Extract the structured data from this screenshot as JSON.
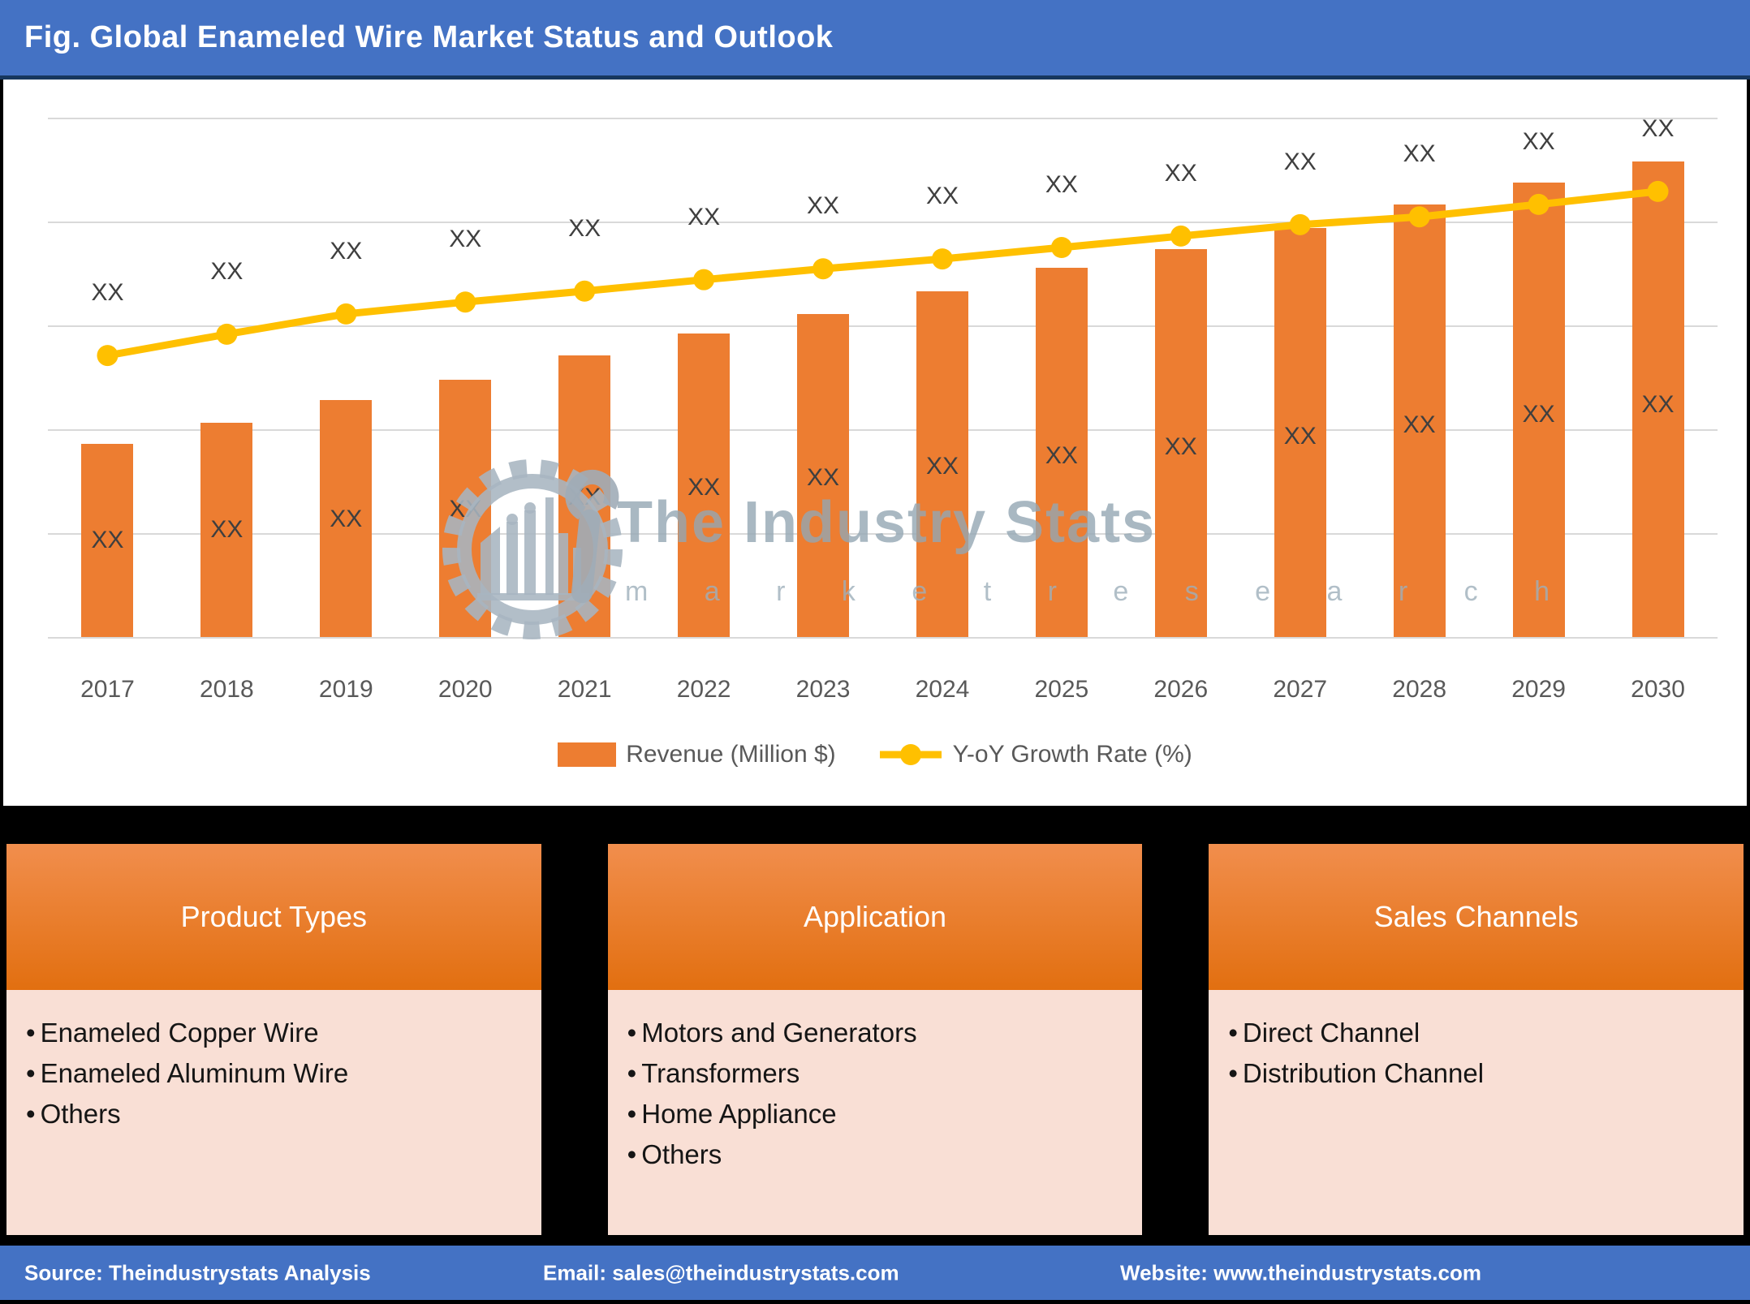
{
  "header": {
    "title": "Fig. Global Enameled Wire Market Status and Outlook"
  },
  "watermark": {
    "brand": "The Industry Stats",
    "tagline": "m a r k e t   r e s e a r c h"
  },
  "legend": {
    "revenue_label": "Revenue (Million $)",
    "growth_label": "Y-oY Growth Rate (%)"
  },
  "chart_data": {
    "type": "combo",
    "title": "Global Enameled Wire Market Status and Outlook",
    "categories": [
      "2017",
      "2018",
      "2019",
      "2020",
      "2021",
      "2022",
      "2023",
      "2024",
      "2025",
      "2026",
      "2027",
      "2028",
      "2029",
      "2030"
    ],
    "series": [
      {
        "name": "Revenue (Million $)",
        "type": "bar",
        "color": "#ED7D31",
        "data_labels": [
          "XX",
          "XX",
          "XX",
          "XX",
          "XX",
          "XX",
          "XX",
          "XX",
          "XX",
          "XX",
          "XX",
          "XX",
          "XX",
          "XX"
        ],
        "values_rel_height": [
          0.372,
          0.413,
          0.456,
          0.495,
          0.542,
          0.584,
          0.622,
          0.666,
          0.711,
          0.747,
          0.788,
          0.833,
          0.875,
          0.916
        ]
      },
      {
        "name": "Y-oY Growth Rate (%)",
        "type": "line",
        "color": "#FFC000",
        "data_labels": [
          "XX",
          "XX",
          "XX",
          "XX",
          "XX",
          "XX",
          "XX",
          "XX",
          "XX",
          "XX",
          "XX",
          "XX",
          "XX",
          "XX"
        ],
        "values_rel_height": [
          0.542,
          0.583,
          0.622,
          0.645,
          0.666,
          0.688,
          0.709,
          0.728,
          0.75,
          0.772,
          0.794,
          0.809,
          0.833,
          0.858
        ]
      }
    ],
    "value_axis_ticks_visible": false,
    "grid": true,
    "legend_position": "bottom",
    "values_note": "Numeric values are masked as 'XX' in the source figure; values_rel_height are plot-relative heights (0-1) estimated from the image."
  },
  "panels": [
    {
      "title": "Product Types",
      "items": [
        "Enameled Copper Wire",
        "Enameled Aluminum Wire",
        "Others"
      ]
    },
    {
      "title": "Application",
      "items": [
        "Motors and Generators",
        "Transformers",
        "Home Appliance",
        "Others"
      ]
    },
    {
      "title": "Sales Channels",
      "items": [
        "Direct Channel",
        "Distribution Channel"
      ]
    }
  ],
  "footer": {
    "source": "Source: Theindustrystats Analysis",
    "email": "Email: sales@theindustrystats.com",
    "website": "Website: www.theindustrystats.com"
  },
  "colors": {
    "title_bar": "#4472C4",
    "title_bar_border": "#17375E",
    "bar": "#ED7D31",
    "line": "#FFC000",
    "gridline": "#D9D9D9",
    "axis_text": "#595959",
    "data_label_text": "#3F3F3F",
    "panel_header_top": "#F18E4D",
    "panel_header_bottom": "#E26F10",
    "panel_body": "#F9DFD5",
    "panel_gap_background": "#000000",
    "footer_bar": "#4472C4",
    "watermark": "#A7B5C0"
  }
}
